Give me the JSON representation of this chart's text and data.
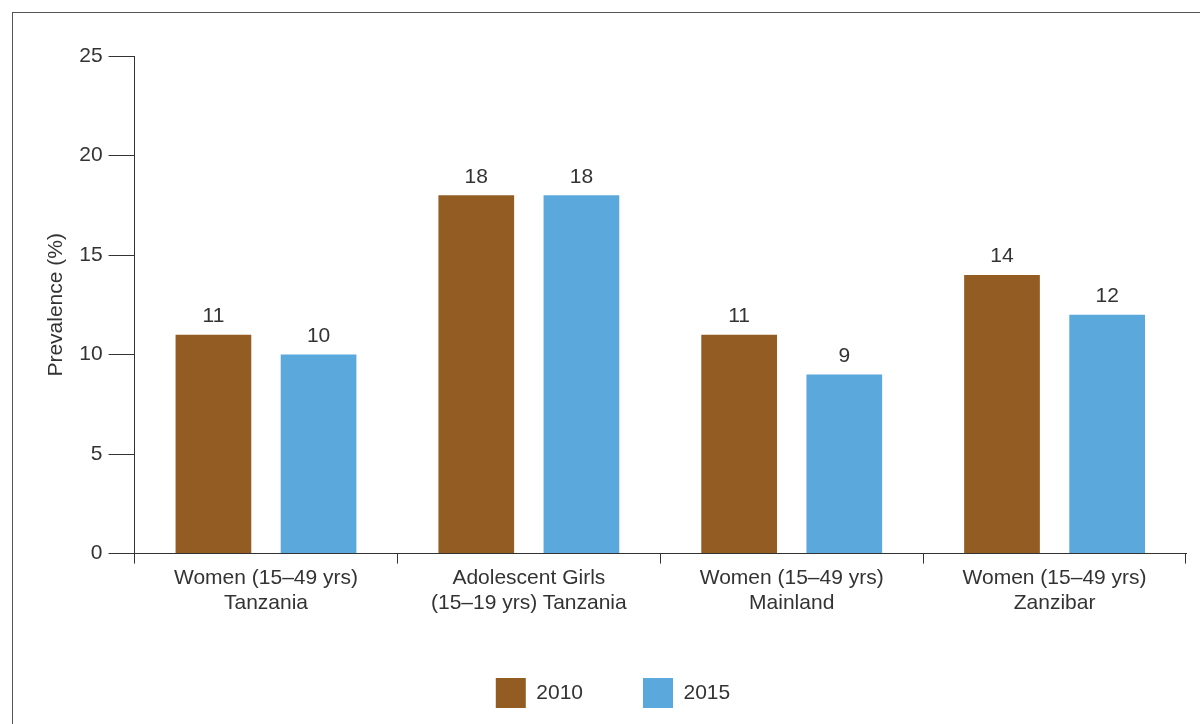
{
  "chart_data": {
    "type": "bar",
    "ylabel": "Prevalence (%)",
    "categories": [
      "Women (15–49 yrs)\nTanzania",
      "Adolescent Girls\n(15–19 yrs) Tanzania",
      "Women (15–49 yrs)\nMainland",
      "Women (15–49 yrs)\nZanzibar"
    ],
    "series": [
      {
        "name": "2010",
        "color": "#935c22",
        "values": [
          11,
          18,
          11,
          14
        ]
      },
      {
        "name": "2015",
        "color": "#5ba8dc",
        "values": [
          10,
          18,
          9,
          12
        ]
      }
    ],
    "ylim": [
      0,
      25
    ],
    "yticks": [
      0,
      5,
      10,
      15,
      20,
      25
    ],
    "grid": false,
    "legend": "bottom",
    "data_labels": true
  }
}
